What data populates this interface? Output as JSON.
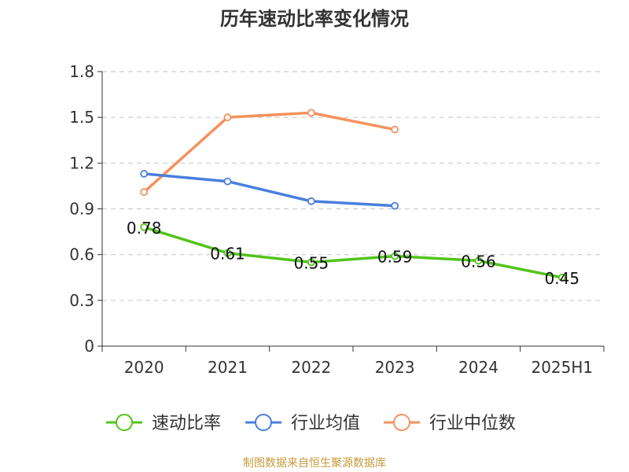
{
  "chart_data": {
    "type": "line",
    "title": "历年速动比率变化情况",
    "categories": [
      "2020",
      "2021",
      "2022",
      "2023",
      "2024",
      "2025H1"
    ],
    "ylim": [
      0,
      1.8
    ],
    "yticks": [
      "0",
      "0.3",
      "0.6",
      "0.9",
      "1.2",
      "1.5",
      "1.8"
    ],
    "grid": true,
    "legend_position": "bottom",
    "series": [
      {
        "name": "速动比率",
        "color": "#52c41a",
        "values": [
          0.78,
          0.61,
          0.55,
          0.59,
          0.56,
          0.45
        ],
        "labels": [
          "0.78",
          "0.61",
          "0.55",
          "0.59",
          "0.56",
          "0.45"
        ]
      },
      {
        "name": "行业均值",
        "color": "#4a7fdc",
        "values": [
          1.13,
          1.08,
          0.95,
          0.92,
          null,
          null
        ]
      },
      {
        "name": "行业中位数",
        "color": "#f5925e",
        "values": [
          1.01,
          1.5,
          1.53,
          1.42,
          null,
          null
        ]
      }
    ]
  },
  "footer": {
    "source": "制图数据来自恒生聚源数据库"
  }
}
